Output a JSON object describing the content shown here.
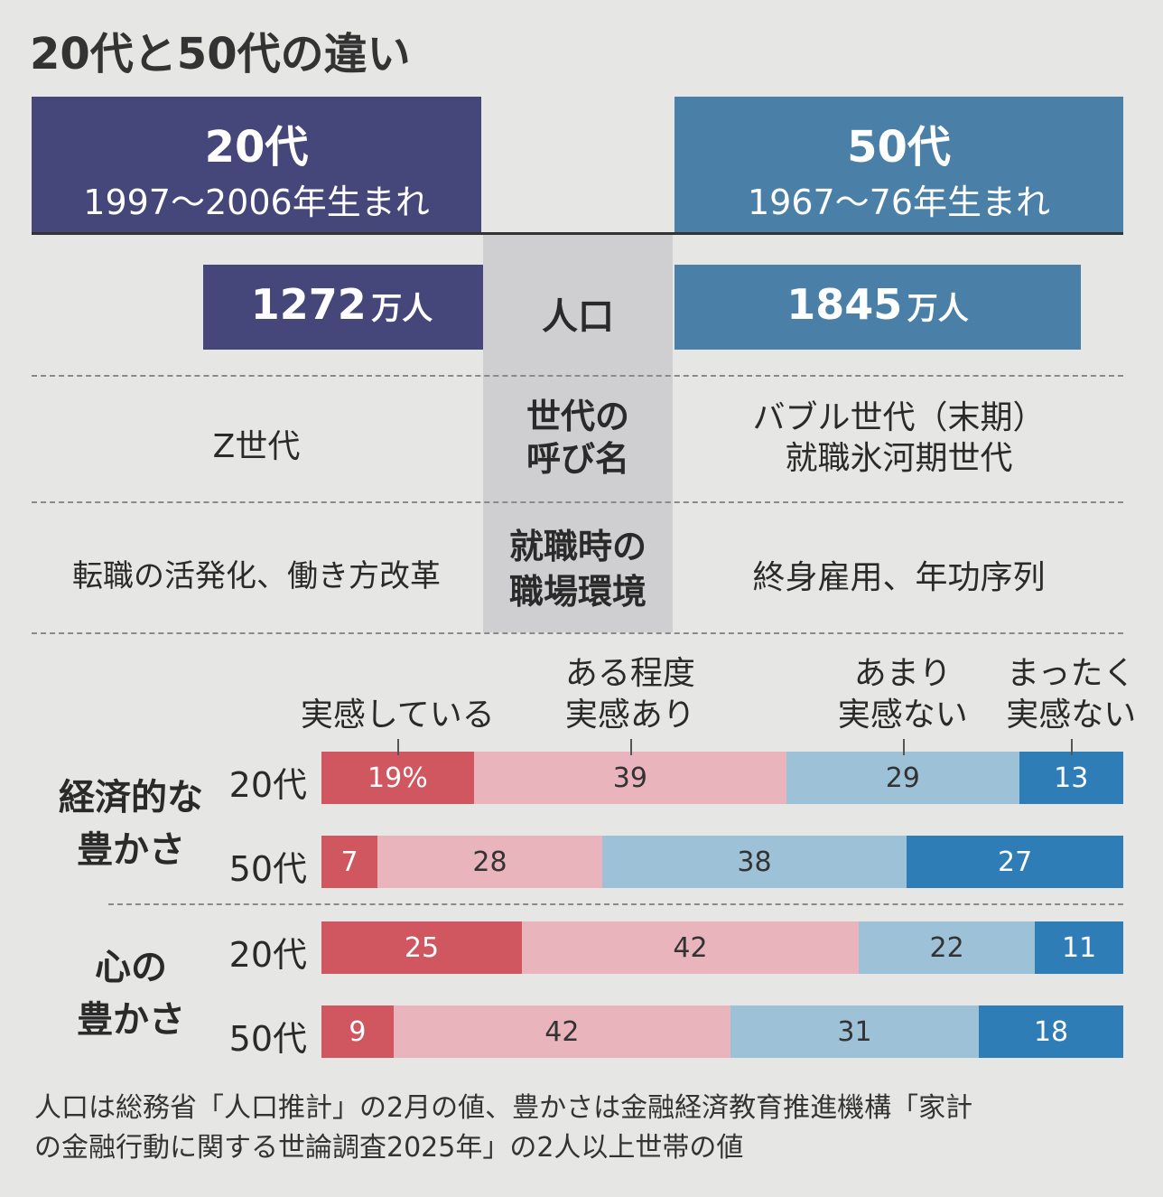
{
  "title": "20代と50代の違い",
  "headers": [
    {
      "name": "20代",
      "born": "1997〜2006年生まれ"
    },
    {
      "name": "50代",
      "born": "1967〜76年生まれ"
    }
  ],
  "population": {
    "label": "人口",
    "values": [
      1272,
      1845
    ],
    "unit": "万人"
  },
  "rows": [
    {
      "label": "世代の\n呼び名",
      "cells": [
        "Z世代",
        "バブル世代（末期）\n就職氷河期世代"
      ]
    },
    {
      "label": "就職時の\n職場環境",
      "cells": [
        "転職の活発化、働き方改革",
        "終身雇用、年功序列"
      ]
    }
  ],
  "chart_data": {
    "type": "stacked_barh",
    "group_labels": [
      "経済的な\n豊かさ",
      "心の\n豊かさ"
    ],
    "categories": [
      "20代",
      "50代",
      "20代",
      "50代"
    ],
    "xlim": [
      0,
      100
    ],
    "series": [
      {
        "name": "実感している",
        "color": "#d0575f",
        "values": [
          19,
          7,
          25,
          9
        ],
        "value_labels": [
          "19%",
          "7",
          "25",
          "9"
        ]
      },
      {
        "name": "ある程度\n実感あり",
        "color": "#e9b4bc",
        "values": [
          39,
          28,
          42,
          42
        ]
      },
      {
        "name": "あまり\n実感ない",
        "color": "#9dc1d7",
        "values": [
          29,
          38,
          22,
          31
        ]
      },
      {
        "name": "まったく\n実感ない",
        "color": "#2f7db6",
        "values": [
          13,
          27,
          11,
          18
        ]
      }
    ]
  },
  "note": "人口は総務省「人口推計」の2月の値、豊かさは金融経済教育推進機構「家計\nの金融行動に関する世論調査2025年」の2人以上世帯の値"
}
